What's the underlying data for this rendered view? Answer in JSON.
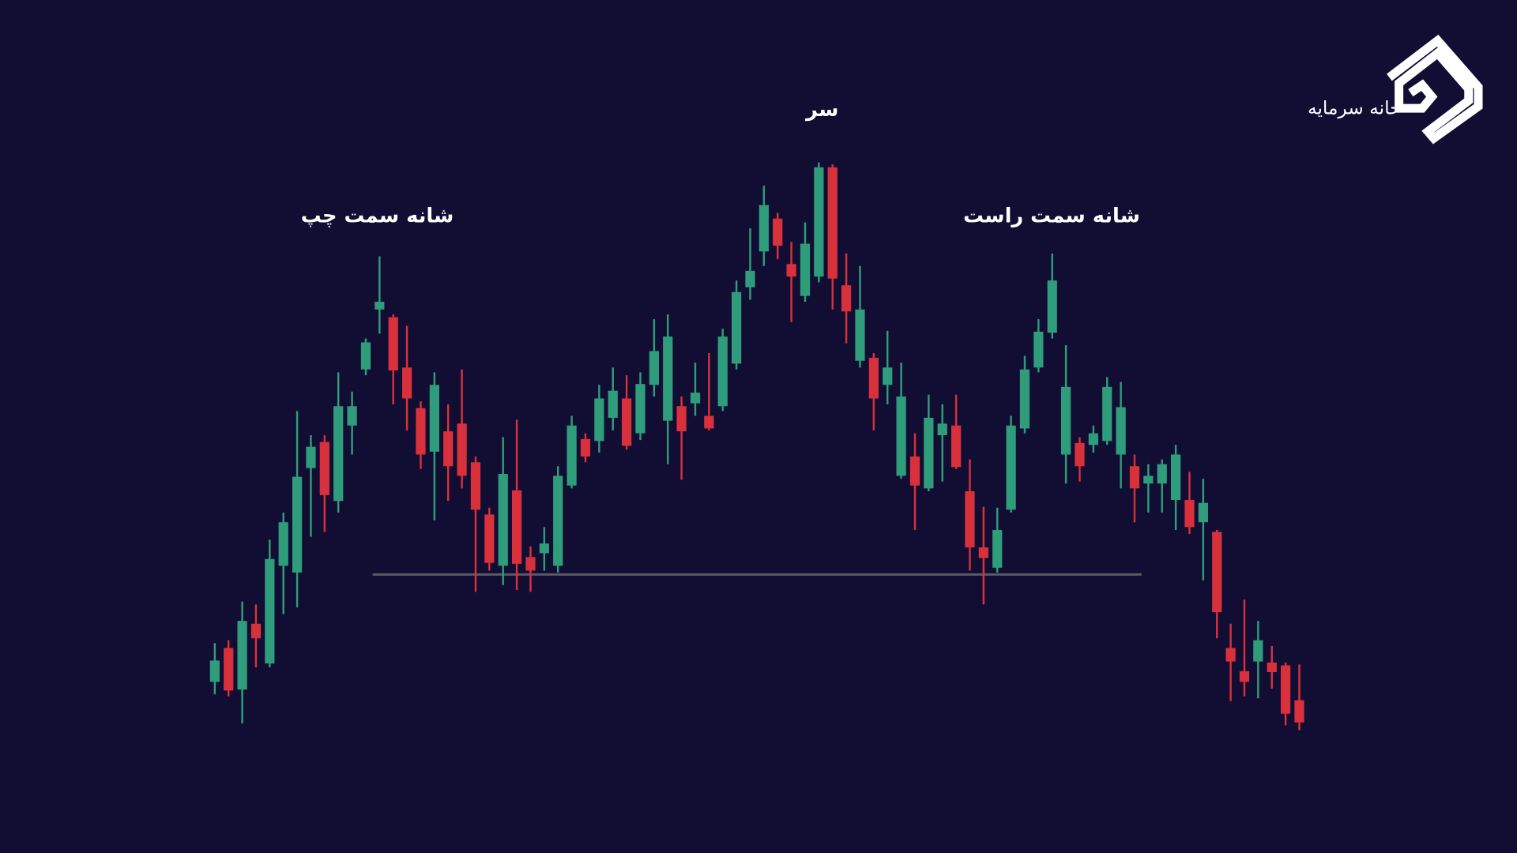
{
  "chart_data": {
    "type": "candlestick",
    "annotations": {
      "head": "سر",
      "left_shoulder": "شانه سمت چپ",
      "right_shoulder": "شانه سمت راست"
    },
    "brand": "خانه سرمایه",
    "up_color": "#2f9c7c",
    "down_color": "#d8313c",
    "support_color": "#5a5a66",
    "ylim": [
      0,
      882
    ],
    "support": 288,
    "open": [
      177,
      212,
      169,
      237,
      196,
      297,
      290,
      398,
      425,
      364,
      442,
      500,
      562,
      554,
      502,
      460,
      415,
      436,
      444,
      404,
      350,
      297,
      375,
      306,
      310,
      297,
      380,
      428,
      426,
      450,
      470,
      434,
      484,
      447,
      462,
      465,
      452,
      462,
      506,
      585,
      622,
      656,
      609,
      576,
      596,
      709,
      587,
      509,
      512,
      484,
      390,
      410,
      377,
      432,
      442,
      374,
      316,
      295,
      355,
      439,
      502,
      538,
      412,
      424,
      422,
      426,
      412,
      400,
      382,
      382,
      365,
      365,
      342,
      332,
      212,
      188,
      198,
      197,
      194,
      158
    ],
    "high": [
      217,
      220,
      260,
      257,
      324,
      352,
      457,
      432,
      432,
      497,
      477,
      532,
      617,
      557,
      545,
      467,
      497,
      464,
      500,
      410,
      357,
      430,
      448,
      317,
      337,
      400,
      452,
      434,
      484,
      502,
      494,
      497,
      552,
      557,
      472,
      507,
      517,
      542,
      592,
      646,
      690,
      662,
      632,
      652,
      714,
      712,
      620,
      607,
      517,
      540,
      507,
      434,
      474,
      464,
      474,
      407,
      358,
      357,
      452,
      514,
      552,
      620,
      525,
      430,
      442,
      492,
      487,
      412,
      402,
      407,
      422,
      394,
      387,
      334,
      237,
      262,
      240,
      214,
      197,
      195
    ],
    "low": [
      164,
      162,
      134,
      192,
      192,
      247,
      254,
      327,
      332,
      352,
      412,
      494,
      537,
      464,
      437,
      397,
      344,
      364,
      377,
      270,
      292,
      277,
      272,
      270,
      292,
      290,
      377,
      404,
      414,
      437,
      417,
      427,
      472,
      402,
      386,
      452,
      437,
      457,
      500,
      572,
      607,
      614,
      549,
      570,
      590,
      562,
      527,
      502,
      437,
      464,
      387,
      334,
      374,
      384,
      397,
      292,
      257,
      290,
      352,
      434,
      497,
      532,
      382,
      384,
      414,
      422,
      377,
      342,
      352,
      352,
      334,
      330,
      282,
      222,
      157,
      162,
      160,
      170,
      132,
      127
    ],
    "close": [
      199,
      168,
      240,
      222,
      304,
      342,
      389,
      420,
      370,
      462,
      462,
      528,
      570,
      499,
      470,
      412,
      484,
      400,
      390,
      355,
      300,
      392,
      299,
      292,
      320,
      390,
      442,
      410,
      470,
      478,
      421,
      485,
      519,
      534,
      436,
      476,
      439,
      534,
      580,
      602,
      670,
      628,
      596,
      630,
      709,
      594,
      560,
      562,
      470,
      502,
      472,
      380,
      450,
      444,
      399,
      316,
      305,
      334,
      442,
      500,
      539,
      592,
      482,
      400,
      434,
      482,
      461,
      377,
      390,
      402,
      412,
      337,
      362,
      249,
      198,
      177,
      220,
      187,
      144,
      135
    ]
  }
}
